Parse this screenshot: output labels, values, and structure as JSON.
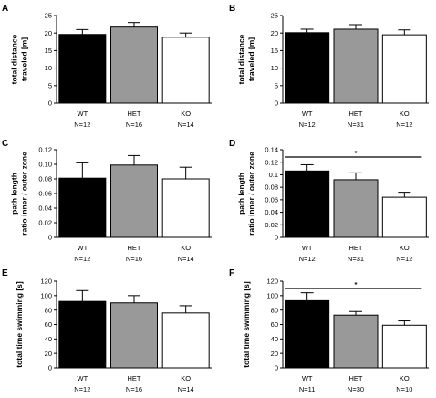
{
  "chart_data": [
    {
      "panel": "A",
      "type": "bar",
      "ylabel": [
        "total distance",
        "traveled [m]"
      ],
      "ylim": [
        0,
        25
      ],
      "yticks": [
        0,
        5,
        10,
        15,
        20,
        25
      ],
      "categories": [
        "WT",
        "HET",
        "KO"
      ],
      "n": [
        "N=12",
        "N=16",
        "N=14"
      ],
      "values": [
        19.6,
        21.7,
        18.8
      ],
      "errors": [
        1.4,
        1.3,
        1.2
      ],
      "colors": [
        "#000000",
        "#999999",
        "#ffffff"
      ],
      "significance": null
    },
    {
      "panel": "B",
      "type": "bar",
      "ylabel": [
        "total distance",
        "traveled [m]"
      ],
      "ylim": [
        0,
        25
      ],
      "yticks": [
        0,
        5,
        10,
        15,
        20,
        25
      ],
      "categories": [
        "WT",
        "HET",
        "KO"
      ],
      "n": [
        "N=12",
        "N=31",
        "N=12"
      ],
      "values": [
        20.1,
        21.1,
        19.5
      ],
      "errors": [
        1.0,
        1.3,
        1.4
      ],
      "colors": [
        "#000000",
        "#999999",
        "#ffffff"
      ],
      "significance": null
    },
    {
      "panel": "C",
      "type": "bar",
      "ylabel": [
        "path length",
        "ratio inner / outer zone"
      ],
      "ylim": [
        0,
        0.12
      ],
      "yticks": [
        "0",
        "0.02",
        "0.04",
        "0.06",
        "0.08",
        "0.10",
        "0.12"
      ],
      "categories": [
        "WT",
        "HET",
        "KO"
      ],
      "n": [
        "N=12",
        "N=16",
        "N=14"
      ],
      "values": [
        0.081,
        0.099,
        0.08
      ],
      "errors": [
        0.021,
        0.013,
        0.016
      ],
      "colors": [
        "#000000",
        "#999999",
        "#ffffff"
      ],
      "significance": null
    },
    {
      "panel": "D",
      "type": "bar",
      "ylabel": [
        "path length",
        "ratio inner / outer zone"
      ],
      "ylim": [
        0,
        0.14
      ],
      "yticks": [
        "0",
        "0.02",
        "0.04",
        "0.06",
        "0.08",
        "0.1",
        "0.12",
        "0.14"
      ],
      "categories": [
        "WT",
        "HET",
        "KO"
      ],
      "n": [
        "N=12",
        "N=31",
        "N=12"
      ],
      "values": [
        0.106,
        0.092,
        0.064
      ],
      "errors": [
        0.01,
        0.011,
        0.008
      ],
      "colors": [
        "#000000",
        "#999999",
        "#ffffff"
      ],
      "significance": "*"
    },
    {
      "panel": "E",
      "type": "bar",
      "ylabel": [
        "total time swimming [s]"
      ],
      "ylim": [
        0,
        120
      ],
      "yticks": [
        0,
        20,
        40,
        60,
        80,
        100,
        120
      ],
      "categories": [
        "WT",
        "HET",
        "KO"
      ],
      "n": [
        "N=12",
        "N=16",
        "N=14"
      ],
      "values": [
        92,
        90,
        76
      ],
      "errors": [
        15,
        10,
        10
      ],
      "colors": [
        "#000000",
        "#999999",
        "#ffffff"
      ],
      "significance": null
    },
    {
      "panel": "F",
      "type": "bar",
      "ylabel": [
        "total time swimming [s]"
      ],
      "ylim": [
        0,
        120
      ],
      "yticks": [
        0,
        20,
        40,
        60,
        80,
        100,
        120
      ],
      "categories": [
        "WT",
        "HET",
        "KO"
      ],
      "n": [
        "N=11",
        "N=30",
        "N=10"
      ],
      "values": [
        93,
        73,
        59
      ],
      "errors": [
        11,
        5,
        6
      ],
      "colors": [
        "#000000",
        "#999999",
        "#ffffff"
      ],
      "significance": "*"
    }
  ]
}
